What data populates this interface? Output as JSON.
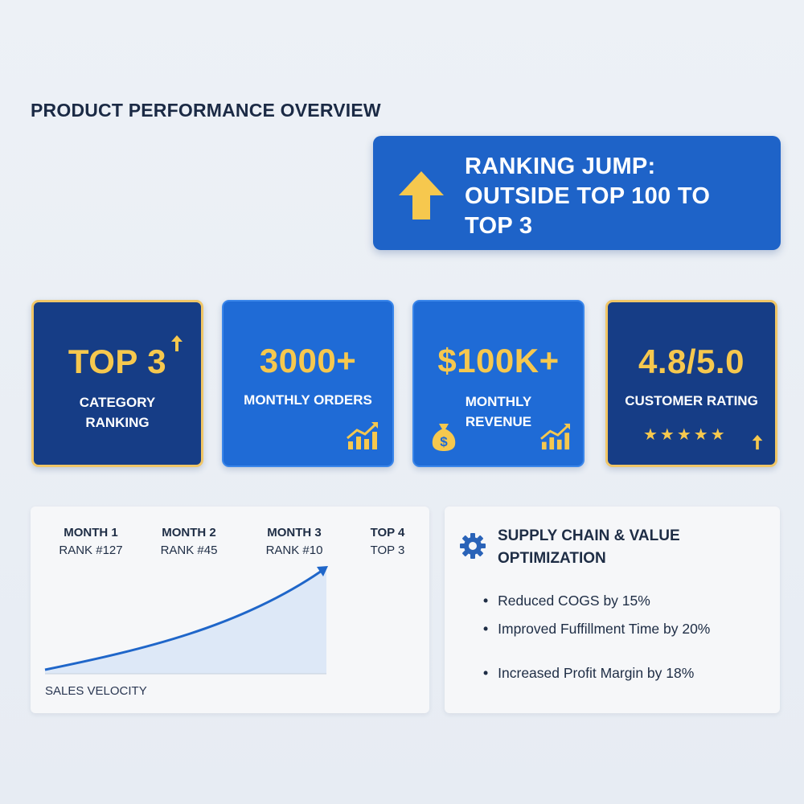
{
  "page_title": "PRODUCT PERFORMANCE OVERVIEW",
  "banner": {
    "text": "RANKING JUMP:\nOUTSIDE TOP 100 TO\nTOP 3",
    "icon": "up-arrow-icon"
  },
  "kpis": [
    {
      "value": "TOP 3",
      "label": "CATEGORY\nRANKING",
      "icon": "small-up-arrow-icon"
    },
    {
      "value": "3000+",
      "label": "MONTHLY ORDERS",
      "icon": "growth-chart-icon"
    },
    {
      "value": "$100K+",
      "label": "MONTHLY\nREVENUE",
      "icon": "money-bag-icon"
    },
    {
      "value": "4.8/5.0",
      "label": "CUSTOMER RATING",
      "stars": "★★★★★",
      "icon": "small-up-arrow-icon"
    }
  ],
  "velocity": {
    "months": [
      {
        "name": "MONTH 1",
        "rank": "RANK #127"
      },
      {
        "name": "MONTH 2",
        "rank": "RANK #45"
      },
      {
        "name": "MONTH 3",
        "rank": "RANK #10"
      },
      {
        "name": "TOP 4",
        "rank": "TOP 3"
      }
    ],
    "label": "SALES VELOCITY"
  },
  "optimization": {
    "title": "SUPPLY CHAIN & VALUE\nOPTIMIZATION",
    "icon": "gear-icon",
    "bullets": [
      "Reduced COGS by 15%",
      "Improved Fuffillment Time by 20%",
      "Increased Profit Margin by 18%"
    ]
  },
  "colors": {
    "navy": "#163d86",
    "blue": "#1f6bd6",
    "gold": "#f6c84e",
    "border_gold": "#f0c667"
  }
}
